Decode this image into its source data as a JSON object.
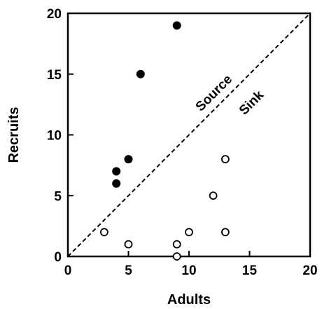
{
  "chart_data": {
    "type": "scatter",
    "title": "",
    "xlabel": "Adults",
    "ylabel": "Recruits",
    "xlim": [
      0,
      20
    ],
    "ylim": [
      0,
      20
    ],
    "xticks": [
      "0",
      "5",
      "10",
      "15",
      "20"
    ],
    "yticks": [
      "0",
      "5",
      "10",
      "15",
      "20"
    ],
    "grid": false,
    "series": [
      {
        "marker": "filled-circle",
        "color": "#000000",
        "points": [
          [
            4,
            6
          ],
          [
            4,
            7
          ],
          [
            5,
            8
          ],
          [
            6,
            15
          ],
          [
            9,
            19
          ]
        ]
      },
      {
        "marker": "open-circle",
        "color": "#000000",
        "points": [
          [
            3,
            2
          ],
          [
            5,
            1
          ],
          [
            9,
            1
          ],
          [
            9,
            0
          ],
          [
            10,
            2
          ],
          [
            12,
            5
          ],
          [
            13,
            8
          ],
          [
            13,
            2
          ]
        ]
      }
    ],
    "reference_line": {
      "style": "dashed",
      "from": [
        0,
        0
      ],
      "to": [
        20,
        20
      ]
    },
    "annotations": [
      {
        "text": "Source",
        "x": 12.3,
        "y": 13.2,
        "rotation_deg": -45
      },
      {
        "text": "Sink",
        "x": 15.4,
        "y": 12.4,
        "rotation_deg": -45
      }
    ]
  }
}
